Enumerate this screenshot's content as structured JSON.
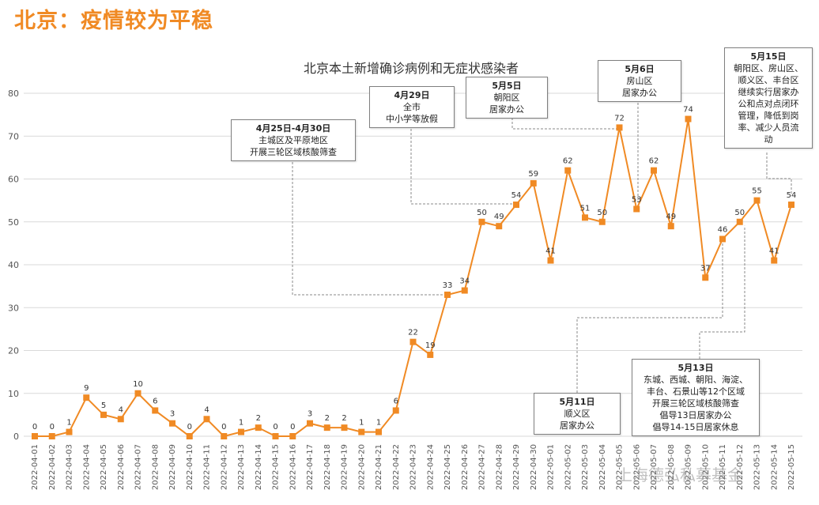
{
  "page_title": "北京：疫情较为平稳",
  "watermark": "上海德弘私募基金",
  "chart_data": {
    "type": "line",
    "title": "北京本土新增确诊病例和无症状感染者",
    "x": [
      "2022-04-01",
      "2022-04-02",
      "2022-04-03",
      "2022-04-04",
      "2022-04-05",
      "2022-04-06",
      "2022-04-07",
      "2022-04-08",
      "2022-04-09",
      "2022-04-10",
      "2022-04-11",
      "2022-04-12",
      "2022-04-13",
      "2022-04-14",
      "2022-04-15",
      "2022-04-16",
      "2022-04-17",
      "2022-04-18",
      "2022-04-19",
      "2022-04-20",
      "2022-04-21",
      "2022-04-22",
      "2022-04-23",
      "2022-04-24",
      "2022-04-25",
      "2022-04-26",
      "2022-04-27",
      "2022-04-28",
      "2022-04-29",
      "2022-04-30",
      "2022-05-01",
      "2022-05-02",
      "2022-05-03",
      "2022-05-04",
      "2022-05-05",
      "2022-05-06",
      "2022-05-07",
      "2022-05-08",
      "2022-05-09",
      "2022-05-10",
      "2022-05-11",
      "2022-05-12",
      "2022-05-13",
      "2022-05-14",
      "2022-05-15"
    ],
    "values": [
      0,
      0,
      1,
      9,
      5,
      4,
      10,
      6,
      3,
      0,
      4,
      0,
      1,
      2,
      0,
      0,
      3,
      2,
      2,
      1,
      1,
      6,
      22,
      19,
      33,
      34,
      50,
      49,
      54,
      59,
      41,
      62,
      51,
      50,
      72,
      53,
      62,
      49,
      74,
      37,
      46,
      50,
      55,
      41,
      54
    ],
    "ylim": [
      0,
      80
    ],
    "yticks": [
      0,
      10,
      20,
      30,
      40,
      50,
      60,
      70,
      80
    ],
    "grid": true,
    "color": "#f08a24",
    "annotations": [
      {
        "id": "a1",
        "lines": [
          "4月25日-4月30日",
          "主城区及平原地区",
          "开展三轮区域核酸筛查"
        ],
        "date": "2022-04-25"
      },
      {
        "id": "a2",
        "lines": [
          "4月29日",
          "全市",
          "中小学等放假"
        ],
        "date": "2022-04-29"
      },
      {
        "id": "a3",
        "lines": [
          "5月5日",
          "朝阳区",
          "居家办公"
        ],
        "date": "2022-05-05"
      },
      {
        "id": "a4",
        "lines": [
          "5月6日",
          "房山区",
          "居家办公"
        ],
        "date": "2022-05-06"
      },
      {
        "id": "a5",
        "lines": [
          "5月15日",
          "朝阳区、房山区、",
          "顺义区、丰台区",
          "继续实行居家办",
          "公和点对点闭环",
          "管理，降低到岗",
          "率、减少人员流",
          "动"
        ],
        "date": "2022-05-15"
      },
      {
        "id": "a6",
        "lines": [
          "5月11日",
          "顺义区",
          "居家办公"
        ],
        "date": "2022-05-11"
      },
      {
        "id": "a7",
        "lines": [
          "5月13日",
          "东城、西城、朝阳、海淀、",
          "丰台、石景山等12个区域",
          "开展三轮区域核酸筛查",
          "倡导13日居家办公",
          "倡导14-15日居家休息"
        ],
        "date": "2022-05-13"
      }
    ]
  }
}
